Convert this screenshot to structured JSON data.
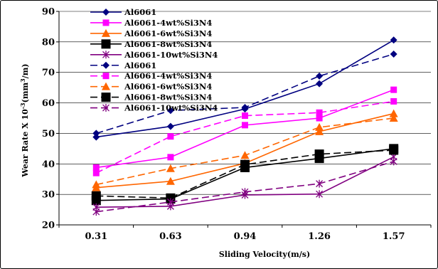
{
  "chart_data": {
    "type": "line",
    "title": "",
    "xlabel": "Sliding Velocity(m/s)",
    "ylabel_prefix": "Wear Rate X 10",
    "ylabel_exp": "-3",
    "ylabel_mid": "(mm",
    "ylabel_exp2": "3",
    "ylabel_suffix": "/m)",
    "categories": [
      "0.31",
      "0.63",
      "0.94",
      "1.26",
      "1.57"
    ],
    "ylim": [
      20,
      90
    ],
    "yticks": [
      "20",
      "30",
      "40",
      "50",
      "60",
      "70",
      "80",
      "90"
    ],
    "grid": "horizontal",
    "legend_position": "top-left",
    "series": [
      {
        "name": "Al6061",
        "color": "#000080",
        "marker": "diamond",
        "dash": "solid",
        "values": [
          48.8,
          52.3,
          58.0,
          66.3,
          80.6
        ]
      },
      {
        "name": "Al6061-4wt%Si3N4",
        "color": "#ff00ff",
        "marker": "square",
        "dash": "solid",
        "values": [
          38.8,
          42.2,
          52.7,
          55.0,
          64.3
        ]
      },
      {
        "name": "Al6061-6wt%Si3N4",
        "color": "#ff6600",
        "marker": "triangle",
        "dash": "solid",
        "values": [
          32.2,
          34.3,
          40.2,
          50.6,
          56.5
        ]
      },
      {
        "name": "Al6061-8wt%Si3N4",
        "color": "#000000",
        "marker": "square-big",
        "dash": "solid",
        "values": [
          28.0,
          28.5,
          38.8,
          41.8,
          45.0
        ]
      },
      {
        "name": "Al6061-10wt%Si3N4",
        "color": "#800080",
        "marker": "star",
        "dash": "solid",
        "values": [
          25.8,
          26.1,
          29.8,
          30.1,
          42.3
        ]
      },
      {
        "name": "Al6061",
        "color": "#000080",
        "marker": "diamond",
        "dash": "dashed",
        "values": [
          50.0,
          57.5,
          58.5,
          68.8,
          76.0
        ]
      },
      {
        "name": "Al6061-4wt%Si3N4",
        "color": "#ff00ff",
        "marker": "square",
        "dash": "dashed",
        "values": [
          37.0,
          49.0,
          55.8,
          56.8,
          60.5
        ]
      },
      {
        "name": "Al6061-6wt%Si3N4",
        "color": "#ff6600",
        "marker": "triangle",
        "dash": "dashed",
        "values": [
          33.2,
          38.5,
          42.8,
          52.0,
          55.0
        ]
      },
      {
        "name": "Al6061-8wt%Si3N4",
        "color": "#000000",
        "marker": "square-big",
        "dash": "dashed",
        "values": [
          29.5,
          28.8,
          39.8,
          43.2,
          44.5
        ]
      },
      {
        "name": "Al6061-10wt%Si3N4",
        "color": "#800080",
        "marker": "star",
        "dash": "dashed",
        "values": [
          24.3,
          27.5,
          30.8,
          33.5,
          40.8
        ]
      }
    ]
  }
}
